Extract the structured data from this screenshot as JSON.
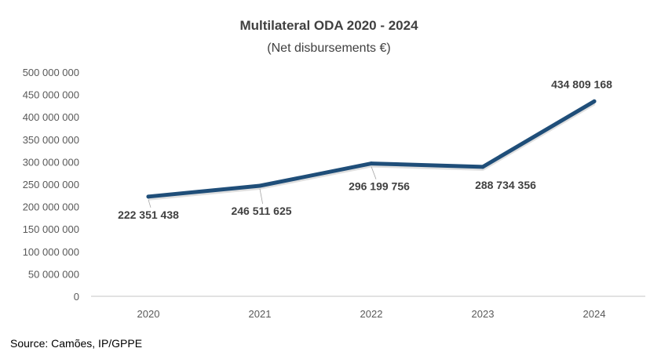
{
  "chart_data": {
    "type": "line",
    "title": "Multilateral ODA 2020 - 2024",
    "subtitle": "(Net disbursements €)",
    "categories": [
      "2020",
      "2021",
      "2022",
      "2023",
      "2024"
    ],
    "values": [
      222351438,
      246511625,
      296199756,
      288734356,
      434809168
    ],
    "data_labels": [
      "222 351 438",
      "246 511 625",
      "296 199 756",
      "288 734 356",
      "434 809 168"
    ],
    "ylim": [
      0,
      500000000
    ],
    "yticks": [
      0,
      50000000,
      100000000,
      150000000,
      200000000,
      250000000,
      300000000,
      350000000,
      400000000,
      450000000,
      500000000
    ],
    "ytick_labels": [
      "0",
      "50 000 000",
      "100 000 000",
      "150 000 000",
      "200 000 000",
      "250 000 000",
      "300 000 000",
      "350 000 000",
      "400 000 000",
      "450 000 000",
      "500 000 000"
    ],
    "grid": false,
    "line_color": "#1f4e79",
    "xlabel": "",
    "ylabel": ""
  },
  "source": "Source: Camões, IP/GPPE"
}
